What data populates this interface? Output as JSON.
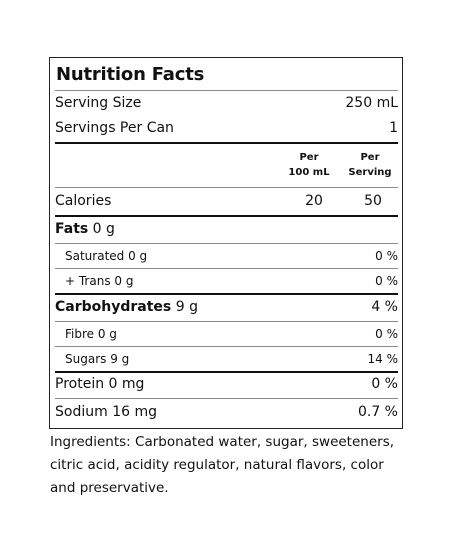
{
  "label": {
    "title": "Nutrition Facts",
    "serving_size": {
      "label": "Serving Size",
      "value": "250 mL"
    },
    "servings_per": {
      "label": "Servings Per Can",
      "value": "1"
    },
    "columns": {
      "per100_top": "Per",
      "per100_bottom": "100 mL",
      "perserv_top": "Per",
      "perserv_bottom": "Serving"
    },
    "calories": {
      "label": "Calories",
      "per100": "20",
      "perserving": "50"
    },
    "fats": {
      "name": "Fats",
      "amount": "0 g"
    },
    "saturated": {
      "label": "Saturated 0 g",
      "dv": "0 %"
    },
    "trans": {
      "label": "+ Trans 0 g",
      "dv": "0 %"
    },
    "carbs": {
      "name": "Carbohydrates",
      "amount": "9 g",
      "dv": "4 %"
    },
    "fibre": {
      "label": "Fibre 0 g",
      "dv": "0 %"
    },
    "sugars": {
      "label": "Sugars 9 g",
      "dv": "14 %"
    },
    "protein": {
      "label": "Protein 0 mg",
      "dv": "0 %"
    },
    "sodium": {
      "label": "Sodium 16 mg",
      "dv": "0.7 %"
    }
  },
  "ingredients": "Ingredients: Carbonated water, sugar, sweeteners, citric acid, acidity regulator, natural flavors, color and preservative."
}
